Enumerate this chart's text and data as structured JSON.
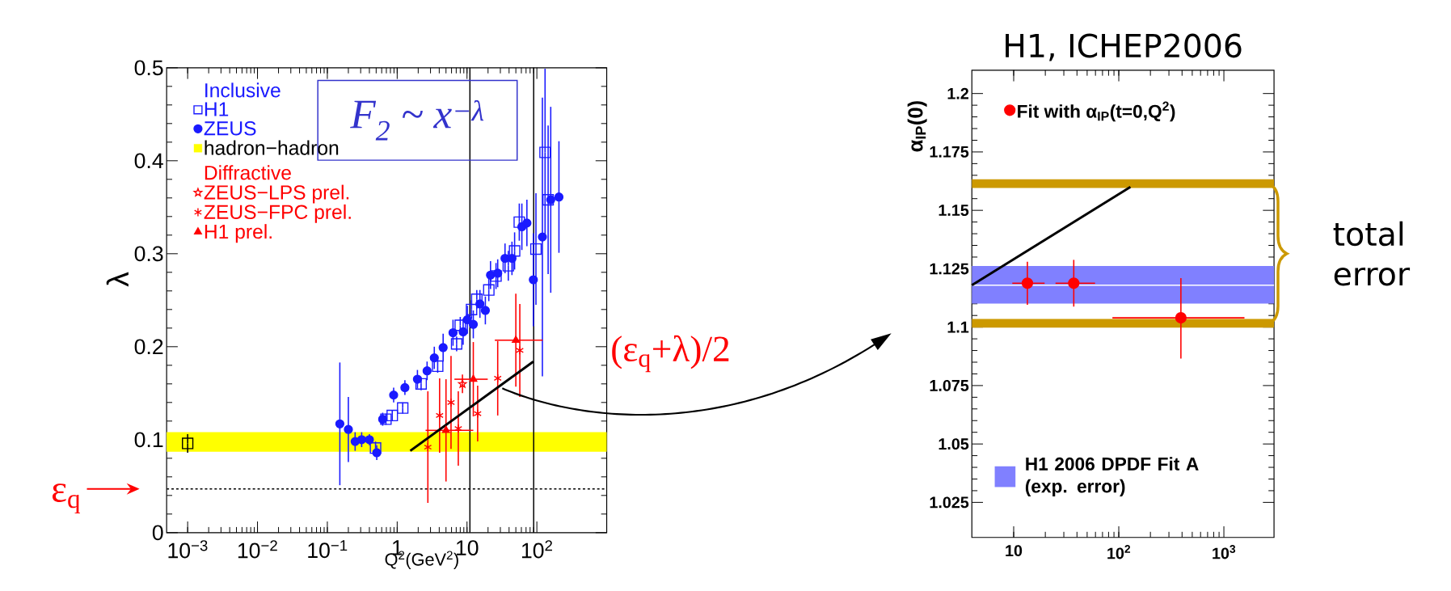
{
  "chart_data": [
    {
      "type": "scatter",
      "xlabel": "Q$^{2}$(GeV$^{2}$)",
      "ylabel": "λ",
      "log": "x",
      "xlim": [
        0.0005,
        1000
      ],
      "ylim": [
        0,
        0.5
      ],
      "xticks": [
        {
          "value": 0.001,
          "label": "10$^{−3}$"
        },
        {
          "value": 0.01,
          "label": "10$^{−2}$"
        },
        {
          "value": 0.1,
          "label": "10$^{−1}$"
        },
        {
          "value": 1,
          "label": "1"
        },
        {
          "value": 10,
          "label": "10"
        },
        {
          "value": 100,
          "label": "10$^{2}$"
        }
      ],
      "yticks": [
        {
          "value": 0,
          "label": "0"
        },
        {
          "value": 0.1,
          "label": "0.1"
        },
        {
          "value": 0.2,
          "label": "0.2"
        },
        {
          "value": 0.3,
          "label": "0.3"
        },
        {
          "value": 0.4,
          "label": "0.4"
        },
        {
          "value": 0.5,
          "label": "0.5"
        }
      ],
      "legend": "top left",
      "annotations": [
        "Inclusive",
        "Diffractive",
        "F$_{2}$ ~ x$^{−λ}$",
        "(ε$_{q}$+λ)/2"
      ],
      "bands": [
        {
          "axis": "y",
          "from": 0.087,
          "to": 0.108,
          "label": "hadron−hadron",
          "color": "#ffff00"
        }
      ],
      "ref_lines": [
        {
          "axis": "y",
          "value": 0.047,
          "label": "ε$_{q}$",
          "color": "#000000",
          "line_style": "dashed"
        },
        {
          "axis": "x",
          "value": 11,
          "color": "#000000"
        },
        {
          "axis": "x",
          "value": 90,
          "color": "#000000"
        }
      ],
      "series": [
        {
          "name": "H1",
          "color": "#1a1aff",
          "marker": "square",
          "x": [
            0.49,
            0.69,
            0.85,
            1.2,
            2.2,
            3.8,
            7.1,
            8.0,
            11.6,
            13.8,
            20.5,
            26,
            39,
            48,
            56,
            97,
            131,
            145
          ],
          "values": [
            0.091,
            0.122,
            0.126,
            0.134,
            0.16,
            0.179,
            0.203,
            0.223,
            0.24,
            0.251,
            0.261,
            0.276,
            0.287,
            0.303,
            0.334,
            0.305,
            0.409,
            0.358
          ],
          "errors": [
            0.007,
            0.006,
            0.006,
            0.006,
            0.007,
            0.007,
            0.008,
            0.009,
            0.01,
            0.01,
            0.012,
            0.014,
            0.016,
            0.02,
            0.02,
            0.06,
            0.09,
            0.08
          ]
        },
        {
          "name": "ZEUS",
          "color": "#1a1aff",
          "marker": "circle",
          "x": [
            0.151,
            0.2,
            0.25,
            0.31,
            0.4,
            0.51,
            0.62,
            0.89,
            1.29,
            1.95,
            2.68,
            3.4,
            4.55,
            6.3,
            8.8,
            10.1,
            12.3,
            15.3,
            18.3,
            21.7,
            27.5,
            35,
            44,
            61,
            72,
            89,
            120,
            158,
            207
          ],
          "values": [
            0.117,
            0.111,
            0.098,
            0.1,
            0.1,
            0.086,
            0.122,
            0.148,
            0.156,
            0.165,
            0.174,
            0.188,
            0.199,
            0.215,
            0.216,
            0.229,
            0.224,
            0.246,
            0.239,
            0.277,
            0.279,
            0.295,
            0.295,
            0.329,
            0.333,
            0.272,
            0.318,
            0.358,
            0.361
          ],
          "errors": [
            0.066,
            0.035,
            0.01,
            0.008,
            0.006,
            0.008,
            0.007,
            0.008,
            0.008,
            0.01,
            0.01,
            0.012,
            0.015,
            0.014,
            0.014,
            0.015,
            0.015,
            0.015,
            0.015,
            0.015,
            0.015,
            0.016,
            0.018,
            0.025,
            0.025,
            0.05,
            0.15,
            0.1,
            0.06
          ]
        },
        {
          "color": "#000000",
          "marker": "square",
          "x": [
            0.001
          ],
          "values": [
            0.096
          ],
          "errors": [
            0.01
          ]
        },
        {
          "name": "ZEUS−LPS prel.",
          "color": "#ff0000",
          "marker": "star",
          "x": [
            8.6
          ],
          "values": [
            0.16
          ],
          "errors": [
            0.01
          ]
        },
        {
          "name": "ZEUS−FPC prel.",
          "color": "#ff0000",
          "marker": "cross",
          "x": [
            2.75,
            4.05,
            5.9,
            7.5,
            14.2,
            27.5,
            57
          ],
          "values": [
            0.092,
            0.126,
            0.14,
            0.112,
            0.128,
            0.166,
            0.196
          ],
          "errors": [
            0.06,
            0.04,
            0.05,
            0.04,
            0.03,
            0.04,
            0.05
          ]
        },
        {
          "name": "H1 prel.",
          "color": "#ff0000",
          "marker": "triangle",
          "x": [
            5.0,
            12.3,
            50
          ],
          "values": [
            0.11,
            0.165,
            0.207
          ],
          "errors": [
            0.055,
            0.04,
            0.05
          ],
          "xerrors": [
            [
              2.55,
              12.3
            ],
            [
              6.6,
              19.8
            ],
            [
              25,
              121
            ]
          ]
        },
        {
          "type": "line",
          "color": "#000000",
          "x": [
            1.54,
            89
          ],
          "values": [
            0.088,
            0.184
          ]
        }
      ]
    },
    {
      "type": "scatter",
      "title": "H1, ICHEP2006",
      "ylabel": "α$_{IP}$(0)",
      "log": "x",
      "xlim": [
        4,
        3000
      ],
      "ylim": [
        1.01,
        1.21
      ],
      "xticks": [
        {
          "value": 10,
          "label": "10"
        },
        {
          "value": 100,
          "label": "10$^{2}$"
        },
        {
          "value": 1000,
          "label": "10$^{3}$"
        }
      ],
      "yticks": [
        {
          "value": 1.025,
          "label": "1.025"
        },
        {
          "value": 1.05,
          "label": "1.05"
        },
        {
          "value": 1.075,
          "label": "1.075"
        },
        {
          "value": 1.1,
          "label": "1.1"
        },
        {
          "value": 1.125,
          "label": "1.125"
        },
        {
          "value": 1.15,
          "label": "1.15"
        },
        {
          "value": 1.175,
          "label": "1.175"
        },
        {
          "value": 1.2,
          "label": "1.2"
        }
      ],
      "legend": "top left",
      "annotations": [
        "total error"
      ],
      "bands": [
        {
          "axis": "y",
          "from": 1.1101,
          "to": 1.1262,
          "label": "H1 2006 DPDF Fit A (exp. error)",
          "color": "#8080ff"
        },
        {
          "axis": "y",
          "from": 1.0998,
          "to": 1.1035,
          "color": "#cc9900"
        },
        {
          "axis": "y",
          "from": 1.1596,
          "to": 1.1633,
          "color": "#cc9900"
        }
      ],
      "ref_lines": [
        {
          "axis": "y",
          "value": 1.118,
          "color": "#ffffff"
        }
      ],
      "series": [
        {
          "name": "Fit with α$_{IP}$(t=0,Q$^{2}$)",
          "color": "#ff0000",
          "marker": "circle",
          "x": [
            13.5,
            37.3,
            390
          ],
          "values": [
            1.1188,
            1.1188,
            1.104
          ],
          "errors": [
            0.0092,
            0.01,
            [
              1.0866,
              1.121
            ]
          ],
          "xerrors": [
            [
              9.7,
              19.7
            ],
            [
              25,
              59.5
            ],
            [
              87,
              1570
            ]
          ]
        },
        {
          "type": "line",
          "color": "#000000",
          "x": [
            4,
            129
          ],
          "values": [
            1.118,
            1.16
          ]
        }
      ]
    }
  ]
}
